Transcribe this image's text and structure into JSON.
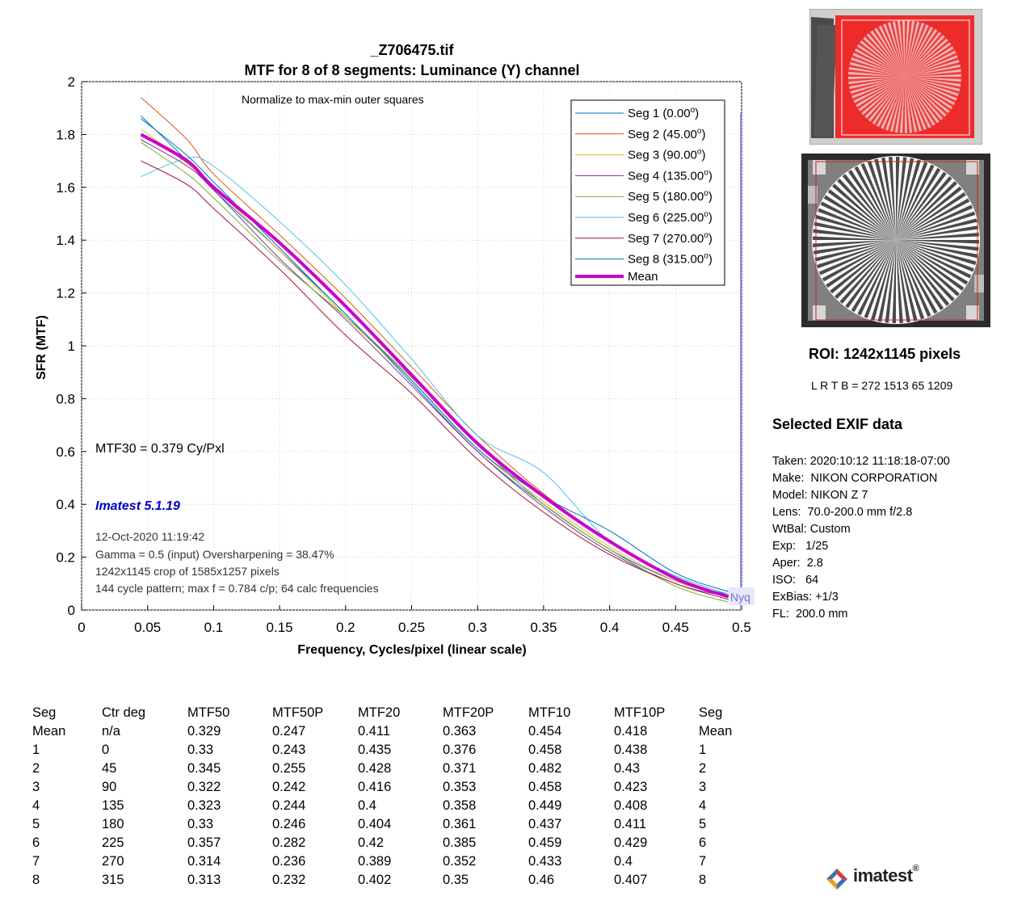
{
  "chart_data": {
    "type": "line",
    "title": "_Z706475.tif",
    "subtitle": "MTF for 8 of 8 segments:  Luminance (Y) channel",
    "xlabel": "Frequency, Cycles/pixel (linear scale)",
    "ylabel": "SFR (MTF)",
    "xlim": [
      0,
      0.5
    ],
    "ylim": [
      0,
      2
    ],
    "x_ticks": [
      0,
      0.05,
      0.1,
      0.15,
      0.2,
      0.25,
      0.3,
      0.35,
      0.4,
      0.45,
      0.5
    ],
    "x_tick_labels": [
      "0",
      "0.05",
      "0.1",
      "0.15",
      "0.2",
      "0.25",
      "0.3",
      "0.35",
      "0.4",
      "0.45",
      "0.5"
    ],
    "y_ticks": [
      0,
      0.2,
      0.4,
      0.6,
      0.8,
      1,
      1.2,
      1.4,
      1.6,
      1.8,
      2
    ],
    "y_tick_labels": [
      "0",
      "0.2",
      "0.4",
      "0.6",
      "0.8",
      "1",
      "1.2",
      "1.4",
      "1.6",
      "1.8",
      "2"
    ],
    "grid": true,
    "legend_position": "top-right",
    "annotation_top": "Normalize to max-min outer squares",
    "mtf30_text": "MTF30 = 0.379 Cy/Pxl",
    "version_text": "Imatest 5.1.19",
    "info_lines": [
      "12-Oct-2020 11:19:42",
      "Gamma = 0.5 (input)  Oversharpening = 38.47%",
      "1242x1145 crop of 1585x1257 pixels",
      "144 cycle pattern; max f = 0.784 c/p;  64 calc frequencies"
    ],
    "nyquist_label": "Nyq",
    "nyquist_x": 0.5,
    "x": [
      0.045,
      0.08,
      0.1,
      0.15,
      0.2,
      0.25,
      0.3,
      0.35,
      0.4,
      0.45,
      0.49
    ],
    "series": [
      {
        "name": "Seg 1 (0.00",
        "sup": "o",
        "close": ")",
        "color": "#0072BD",
        "width": 1,
        "values": [
          1.87,
          1.7,
          1.59,
          1.36,
          1.12,
          0.86,
          0.6,
          0.4,
          0.23,
          0.11,
          0.06
        ]
      },
      {
        "name": "Seg 2 (45.00",
        "sup": "o",
        "close": ")",
        "color": "#D95319",
        "width": 1,
        "values": [
          1.94,
          1.78,
          1.65,
          1.42,
          1.18,
          0.92,
          0.66,
          0.44,
          0.26,
          0.12,
          0.05
        ]
      },
      {
        "name": "Seg 3 (90.00",
        "sup": "o",
        "close": ")",
        "color": "#EDB120",
        "width": 1,
        "values": [
          1.82,
          1.69,
          1.6,
          1.36,
          1.11,
          0.87,
          0.61,
          0.41,
          0.24,
          0.11,
          0.05
        ]
      },
      {
        "name": "Seg 4 (135.00",
        "sup": "o",
        "close": ")",
        "color": "#7E2F8E",
        "width": 1,
        "values": [
          1.78,
          1.68,
          1.59,
          1.33,
          1.1,
          0.85,
          0.6,
          0.39,
          0.22,
          0.1,
          0.05
        ]
      },
      {
        "name": "Seg 5 (180.00",
        "sup": "o",
        "close": ")",
        "color": "#77AC30",
        "width": 1,
        "values": [
          1.77,
          1.65,
          1.56,
          1.32,
          1.11,
          0.88,
          0.63,
          0.4,
          0.23,
          0.09,
          0.03
        ]
      },
      {
        "name": "Seg 6 (225.00",
        "sup": "o",
        "close": ")",
        "color": "#4DBEEE",
        "width": 1,
        "values": [
          1.64,
          1.71,
          1.68,
          1.47,
          1.23,
          0.95,
          0.66,
          0.52,
          0.26,
          0.13,
          0.06
        ]
      },
      {
        "name": "Seg 7 (270.00",
        "sup": "o",
        "close": ")",
        "color": "#A2142F",
        "width": 1,
        "values": [
          1.7,
          1.61,
          1.52,
          1.29,
          1.04,
          0.82,
          0.57,
          0.37,
          0.21,
          0.1,
          0.04
        ]
      },
      {
        "name": "Seg 8 (315.00",
        "sup": "o",
        "close": ")",
        "color": "#0072BD",
        "width": 1,
        "values": [
          1.86,
          1.72,
          1.62,
          1.37,
          1.12,
          0.87,
          0.61,
          0.43,
          0.3,
          0.14,
          0.07
        ]
      },
      {
        "name": "Mean",
        "sup": "",
        "close": "",
        "color": "#CC00CC",
        "width": 4,
        "values": [
          1.8,
          1.7,
          1.6,
          1.39,
          1.15,
          0.89,
          0.63,
          0.43,
          0.26,
          0.12,
          0.05
        ]
      }
    ]
  },
  "side": {
    "roi_label": "ROI:  1242x1145 pixels",
    "lrtb": "L R  T B = 272 1513  65 1209",
    "exif_title": "Selected EXIF data",
    "exif": [
      "Taken: 2020:10:12 11:18:18-07:00",
      "Make:  NIKON CORPORATION",
      "Model: NIKON Z 7",
      "Lens:  70.0-200.0 mm f/2.8",
      "WtBal: Custom",
      "Exp:   1/25",
      "Aper:  2.8",
      "ISO:   64",
      "ExBias: +1/3",
      "FL:  200.0 mm"
    ]
  },
  "table": {
    "headers": [
      "Seg",
      "Ctr deg",
      "MTF50",
      "MTF50P",
      "MTF20",
      "MTF20P",
      "MTF10",
      "MTF10P",
      "Seg"
    ],
    "rows": [
      [
        "Mean",
        "n/a",
        "0.329",
        "0.247",
        "0.411",
        "0.363",
        "0.454",
        "0.418",
        "Mean"
      ],
      [
        "1",
        "0",
        "0.33",
        "0.243",
        "0.435",
        "0.376",
        "0.458",
        "0.438",
        "1"
      ],
      [
        "2",
        "45",
        "0.345",
        "0.255",
        "0.428",
        "0.371",
        "0.482",
        "0.43",
        "2"
      ],
      [
        "3",
        "90",
        "0.322",
        "0.242",
        "0.416",
        "0.353",
        "0.458",
        "0.423",
        "3"
      ],
      [
        "4",
        "135",
        "0.323",
        "0.244",
        "0.4",
        "0.358",
        "0.449",
        "0.408",
        "4"
      ],
      [
        "5",
        "180",
        "0.33",
        "0.246",
        "0.404",
        "0.361",
        "0.437",
        "0.411",
        "5"
      ],
      [
        "6",
        "225",
        "0.357",
        "0.282",
        "0.42",
        "0.385",
        "0.459",
        "0.429",
        "6"
      ],
      [
        "7",
        "270",
        "0.314",
        "0.236",
        "0.389",
        "0.352",
        "0.433",
        "0.4",
        "7"
      ],
      [
        "8",
        "315",
        "0.313",
        "0.232",
        "0.402",
        "0.35",
        "0.46",
        "0.407",
        "8"
      ]
    ]
  },
  "logo": {
    "text": "imatest",
    "reg": "®",
    "colors": [
      "#e03a2f",
      "#3b6fb6",
      "#f39c12"
    ]
  }
}
